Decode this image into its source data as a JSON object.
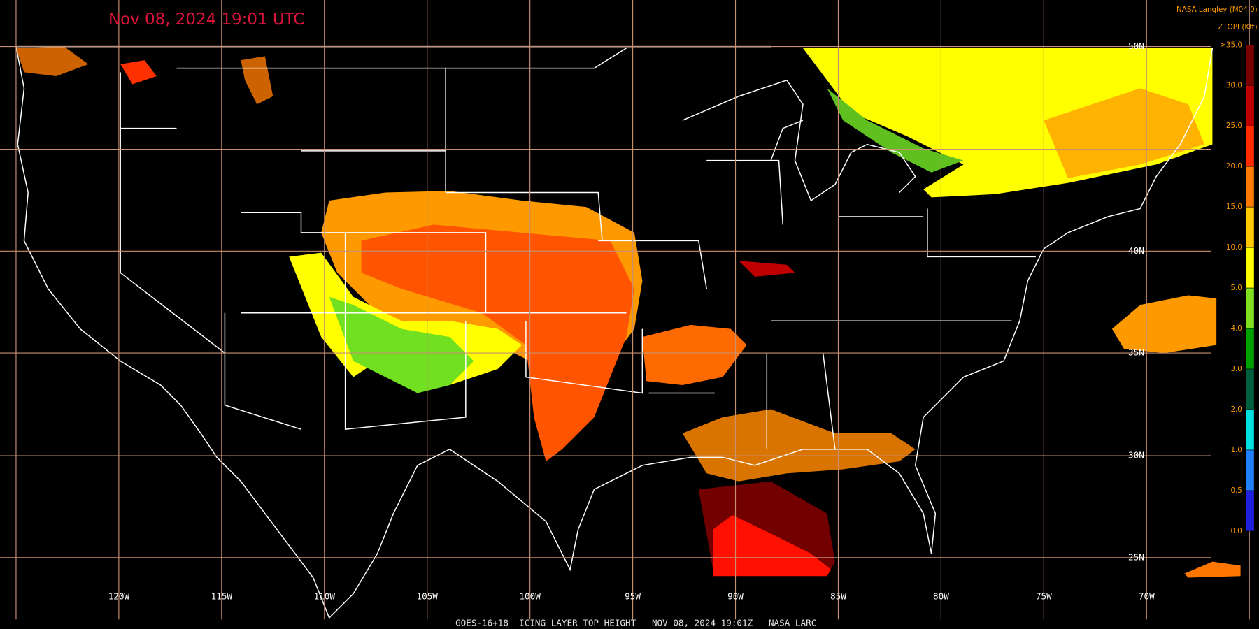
{
  "header": {
    "timestamp": "Nov 08, 2024 19:01 UTC",
    "source": "NASA Langley (M04.0)"
  },
  "legend": {
    "title": "ZTOPI (Kft)",
    "labels": [
      ">35.0",
      "30.0",
      "25.0",
      "20.0",
      "15.0",
      "10.0",
      "5.0",
      "4.0",
      "3.0",
      "2.0",
      "1.0",
      "0.5",
      "0.0"
    ],
    "colors": [
      "#7a0000",
      "#c00000",
      "#ff2a00",
      "#ff7a00",
      "#ffc800",
      "#ffff00",
      "#80e020",
      "#00a000",
      "#006040",
      "#00e0e0",
      "#2080ff",
      "#2020e0",
      "#9040e0"
    ]
  },
  "grid": {
    "lon_labels": [
      "120W",
      "115W",
      "110W",
      "105W",
      "100W",
      "95W",
      "90W",
      "85W",
      "80W",
      "75W",
      "70W"
    ],
    "lat_labels": [
      "50N",
      "40N",
      "35N",
      "30N",
      "25N"
    ]
  },
  "footer": "GOES-16+18  ICING LAYER TOP HEIGHT   NOV 08, 2024 19:01Z   NASA LARC"
}
